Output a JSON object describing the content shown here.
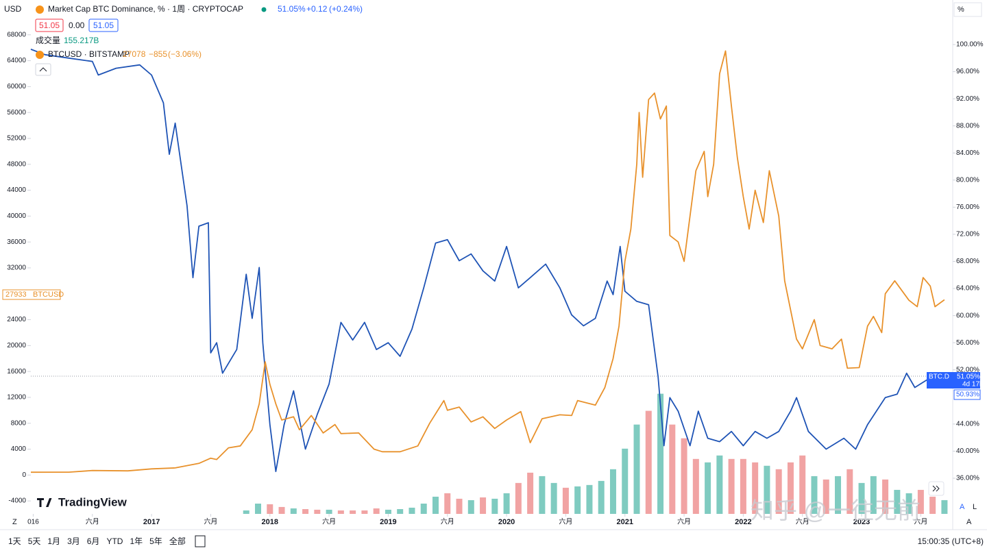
{
  "ui": {
    "currency": "USD",
    "dom_last": "51.05%",
    "dom_change": "+0.12",
    "dom_change_pct": "(+0.24%)",
    "ohlc_box_1": "51.05",
    "ohlc_mid": "0.00",
    "ohlc_box_2": "51.05",
    "volume_label": "成交量",
    "volume_last": "155.217B",
    "btc_last": "27078",
    "btc_change": "−855",
    "btc_change_pct": "(−3.06%)",
    "scale_mode": "%",
    "left_tag_value": "27933",
    "left_tag_name": "BTCUSD",
    "right_tag_name": "BTC.D",
    "right_tag_value": "51.05%",
    "right_tag_time": "4d 17h",
    "right_tag_low": "50.93%",
    "brand": "TradingView",
    "ranges": [
      "1天",
      "5天",
      "1月",
      "3月",
      "6月",
      "YTD",
      "1年",
      "5年",
      "全部"
    ],
    "clock": "15:00:35 (UTC+8)",
    "corner_left": "Z",
    "corner_a": "A",
    "corner_l": "L",
    "corner_a2": "A",
    "watermark": "知乎 @一往无前"
  },
  "chart_data": {
    "type": "line",
    "xlim": [
      2015.98,
      2023.77
    ],
    "xticks": [
      {
        "value": 2016,
        "label": "016"
      },
      {
        "value": 2016.5,
        "label": "六月"
      },
      2017,
      {
        "value": 2017.5,
        "label": "六月"
      },
      2018,
      {
        "value": 2018.5,
        "label": "六月"
      },
      2019,
      {
        "value": 2019.5,
        "label": "六月"
      },
      2020,
      {
        "value": 2020.5,
        "label": "六月"
      },
      2021,
      {
        "value": 2021.5,
        "label": "六月"
      },
      2022,
      {
        "value": 2022.5,
        "label": "六月"
      },
      2023,
      {
        "value": 2023.5,
        "label": "六月"
      }
    ],
    "ylim": [
      -6000,
      70200
    ],
    "yticks": [
      -4000,
      0,
      4000,
      8000,
      12000,
      16000,
      20000,
      24000,
      32000,
      36000,
      40000,
      44000,
      48000,
      52000,
      56000,
      60000,
      64000,
      68000
    ],
    "y2lim": [
      30.74,
      103.54
    ],
    "y2ticks": [
      {
        "value": 36,
        "label": "36.00%"
      },
      {
        "value": 40,
        "label": "40.00%"
      },
      {
        "value": 44,
        "label": "44.00%"
      },
      {
        "value": 52,
        "label": "52.00%"
      },
      {
        "value": 56,
        "label": "56.00%"
      },
      {
        "value": 60,
        "label": "60.00%"
      },
      {
        "value": 64,
        "label": "64.00%"
      },
      {
        "value": 68,
        "label": "68.00%"
      },
      {
        "value": 72,
        "label": "72.00%"
      },
      {
        "value": 76,
        "label": "76.00%"
      },
      {
        "value": 80,
        "label": "80.00%"
      },
      {
        "value": 84,
        "label": "84.00%"
      },
      {
        "value": 88,
        "label": "88.00%"
      },
      {
        "value": 92,
        "label": "92.00%"
      },
      {
        "value": 96,
        "label": "96.00%"
      },
      {
        "value": 100,
        "label": "100.00%"
      }
    ],
    "vlim": [
      0,
      1500
    ],
    "series": [
      {
        "name": "Market Cap BTC Dominance, % · 1周 · CRYPTOCAP",
        "color": "#1e53b5",
        "axis": "y2",
        "x": [
          2015.98,
          2016.1,
          2016.3,
          2016.5,
          2016.55,
          2016.7,
          2016.9,
          2017.0,
          2017.1,
          2017.15,
          2017.2,
          2017.3,
          2017.35,
          2017.4,
          2017.48,
          2017.5,
          2017.55,
          2017.6,
          2017.72,
          2017.8,
          2017.85,
          2017.91,
          2017.94,
          2018.0,
          2018.05,
          2018.12,
          2018.2,
          2018.3,
          2018.4,
          2018.5,
          2018.6,
          2018.7,
          2018.8,
          2018.9,
          2019.0,
          2019.1,
          2019.2,
          2019.3,
          2019.4,
          2019.5,
          2019.6,
          2019.7,
          2019.8,
          2019.9,
          2020.0,
          2020.1,
          2020.2,
          2020.33,
          2020.45,
          2020.55,
          2020.65,
          2020.75,
          2020.85,
          2020.9,
          2020.96,
          2021.0,
          2021.1,
          2021.2,
          2021.28,
          2021.33,
          2021.38,
          2021.45,
          2021.55,
          2021.62,
          2021.7,
          2021.8,
          2021.9,
          2022.0,
          2022.1,
          2022.2,
          2022.3,
          2022.4,
          2022.45,
          2022.55,
          2022.7,
          2022.85,
          2022.95,
          2023.05,
          2023.2,
          2023.3,
          2023.38,
          2023.45,
          2023.55,
          2023.65,
          2023.7
        ],
        "values": [
          99.3,
          98.5,
          98,
          97.5,
          95.5,
          96.5,
          97,
          95.5,
          91.4,
          83.8,
          88.4,
          76.2,
          65.6,
          73.2,
          73.7,
          54.5,
          56,
          51.5,
          55,
          66.1,
          59.6,
          67.1,
          56,
          43.9,
          37,
          43.9,
          48.9,
          40.3,
          45.4,
          49.9,
          59,
          56.4,
          59,
          55,
          56,
          54,
          58,
          64.1,
          70.7,
          71.2,
          68.1,
          69.1,
          66.6,
          65.1,
          70.2,
          64.1,
          65.6,
          67.6,
          64.1,
          60.1,
          58.5,
          59.6,
          65.1,
          63.1,
          70.2,
          63.6,
          62.1,
          61.6,
          51,
          40.8,
          47.9,
          45.9,
          40.8,
          45.9,
          41.9,
          41.4,
          42.9,
          40.8,
          42.9,
          41.9,
          42.9,
          45.9,
          47.9,
          42.9,
          40.3,
          41.9,
          40.3,
          43.9,
          47.9,
          48.4,
          51.5,
          49.4,
          50.5,
          50.1,
          51.05
        ]
      },
      {
        "name": "BTCUSD · BITSTAMP",
        "color": "#e8912b",
        "x": [
          2015.98,
          2016.3,
          2016.5,
          2016.8,
          2017.0,
          2017.2,
          2017.4,
          2017.5,
          2017.55,
          2017.65,
          2017.75,
          2017.85,
          2017.91,
          2017.96,
          2018.0,
          2018.05,
          2018.1,
          2018.2,
          2018.25,
          2018.35,
          2018.45,
          2018.55,
          2018.6,
          2018.75,
          2018.88,
          2018.95,
          2019.1,
          2019.25,
          2019.35,
          2019.47,
          2019.5,
          2019.6,
          2019.7,
          2019.8,
          2019.9,
          2020.0,
          2020.12,
          2020.2,
          2020.3,
          2020.45,
          2020.55,
          2020.6,
          2020.75,
          2020.83,
          2020.9,
          2020.95,
          2021.0,
          2021.05,
          2021.1,
          2021.12,
          2021.15,
          2021.2,
          2021.25,
          2021.3,
          2021.35,
          2021.38,
          2021.45,
          2021.5,
          2021.55,
          2021.6,
          2021.67,
          2021.7,
          2021.75,
          2021.8,
          2021.85,
          2021.9,
          2021.95,
          2022.0,
          2022.05,
          2022.1,
          2022.17,
          2022.22,
          2022.3,
          2022.35,
          2022.45,
          2022.5,
          2022.6,
          2022.65,
          2022.75,
          2022.83,
          2022.88,
          2022.98,
          2023.05,
          2023.1,
          2023.17,
          2023.2,
          2023.28,
          2023.4,
          2023.47,
          2023.52,
          2023.58,
          2023.62,
          2023.7
        ],
        "values": [
          430,
          450,
          700,
          650,
          950,
          1100,
          1800,
          2600,
          2400,
          4200,
          4500,
          7000,
          11000,
          17500,
          14000,
          11000,
          8500,
          9000,
          7000,
          9200,
          6500,
          7800,
          6400,
          6500,
          4000,
          3600,
          3600,
          4500,
          8000,
          11500,
          10000,
          10500,
          8200,
          9000,
          7200,
          8500,
          9800,
          5000,
          8700,
          9300,
          9200,
          11500,
          10800,
          13500,
          18000,
          23000,
          33000,
          38000,
          48000,
          56000,
          46000,
          58000,
          59000,
          55000,
          57000,
          37000,
          36000,
          33000,
          40000,
          47000,
          50000,
          43000,
          48000,
          62000,
          65500,
          57000,
          49000,
          43000,
          38000,
          44000,
          39000,
          47000,
          40000,
          30000,
          21000,
          19500,
          24000,
          20000,
          19500,
          21000,
          16500,
          16600,
          23000,
          24500,
          22000,
          28000,
          30000,
          27000,
          26000,
          30500,
          29200,
          26000,
          27078
        ]
      },
      {
        "name": "成交量",
        "type": "bar",
        "axis": "volume",
        "up_color": "#7fcbc0",
        "down_color": "#f1a3a3",
        "x": [
          2017.8,
          2017.9,
          2018.0,
          2018.1,
          2018.2,
          2018.3,
          2018.4,
          2018.5,
          2018.6,
          2018.7,
          2018.8,
          2018.9,
          2019.0,
          2019.1,
          2019.2,
          2019.3,
          2019.4,
          2019.5,
          2019.6,
          2019.7,
          2019.8,
          2019.9,
          2020.0,
          2020.1,
          2020.2,
          2020.3,
          2020.4,
          2020.5,
          2020.6,
          2020.7,
          2020.8,
          2020.9,
          2021.0,
          2021.1,
          2021.2,
          2021.3,
          2021.4,
          2021.5,
          2021.6,
          2021.7,
          2021.8,
          2021.9,
          2022.0,
          2022.1,
          2022.2,
          2022.3,
          2022.4,
          2022.5,
          2022.6,
          2022.7,
          2022.8,
          2022.9,
          2023.0,
          2023.1,
          2023.2,
          2023.3,
          2023.4,
          2023.5,
          2023.6,
          2023.7
        ],
        "values": [
          39,
          116,
          109,
          78,
          62,
          54,
          47,
          47,
          39,
          39,
          39,
          62,
          47,
          54,
          70,
          116,
          194,
          233,
          171,
          155,
          186,
          171,
          233,
          349,
          465,
          426,
          349,
          295,
          310,
          326,
          372,
          504,
          736,
          1008,
          1163,
          1356,
          1008,
          853,
          620,
          581,
          659,
          620,
          620,
          581,
          543,
          504,
          581,
          659,
          426,
          388,
          426,
          504,
          349,
          426,
          388,
          271,
          233,
          271,
          194,
          155.217
        ],
        "rising": [
          true,
          true,
          false,
          false,
          true,
          false,
          false,
          true,
          false,
          false,
          false,
          false,
          true,
          true,
          true,
          true,
          true,
          false,
          false,
          true,
          false,
          true,
          true,
          false,
          false,
          true,
          true,
          false,
          true,
          true,
          true,
          true,
          true,
          true,
          false,
          true,
          false,
          false,
          false,
          true,
          true,
          false,
          false,
          false,
          true,
          false,
          false,
          false,
          true,
          false,
          true,
          false,
          true,
          true,
          false,
          true,
          true,
          false,
          false,
          true
        ]
      }
    ]
  }
}
